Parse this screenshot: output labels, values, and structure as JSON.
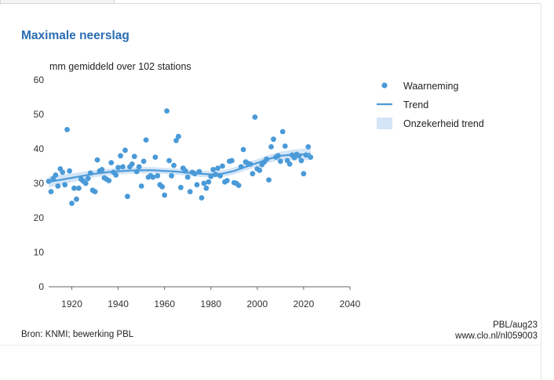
{
  "chart_data": {
    "type": "scatter",
    "title": "Maximale neerslag",
    "ylabel": "mm gemiddeld over 102 stations",
    "xlabel": "",
    "xlim": [
      1910,
      2040
    ],
    "ylim": [
      0,
      60
    ],
    "x_ticks": [
      "1920",
      "1940",
      "1960",
      "1980",
      "2000",
      "2020",
      "2040"
    ],
    "y_ticks": [
      "0",
      "10",
      "20",
      "30",
      "40",
      "50",
      "60"
    ],
    "grid": false,
    "legend_position": "right",
    "legend": {
      "observations": "Waarneming",
      "trend": "Trend",
      "band": "Onzekerheid trend"
    },
    "colors": {
      "points": "#4a9ad8",
      "trend": "#4a9ad8",
      "band": "#d3e5f7",
      "title": "#2a6db2"
    },
    "observations": [
      [
        1910,
        30.6
      ],
      [
        1911,
        27.6
      ],
      [
        1912,
        31.4
      ],
      [
        1913,
        32.4
      ],
      [
        1914,
        29.2
      ],
      [
        1915,
        34.2
      ],
      [
        1916,
        33.2
      ],
      [
        1917,
        29.6
      ],
      [
        1918,
        45.6
      ],
      [
        1919,
        33.6
      ],
      [
        1920,
        24.2
      ],
      [
        1921,
        28.6
      ],
      [
        1922,
        25.4
      ],
      [
        1923,
        28.6
      ],
      [
        1924,
        31.2
      ],
      [
        1925,
        30.6
      ],
      [
        1926,
        30.0
      ],
      [
        1927,
        31.4
      ],
      [
        1928,
        33.0
      ],
      [
        1929,
        28.0
      ],
      [
        1930,
        27.6
      ],
      [
        1931,
        36.8
      ],
      [
        1932,
        33.6
      ],
      [
        1933,
        34.0
      ],
      [
        1934,
        31.6
      ],
      [
        1935,
        31.2
      ],
      [
        1936,
        30.8
      ],
      [
        1937,
        36.0
      ],
      [
        1938,
        33.2
      ],
      [
        1939,
        32.4
      ],
      [
        1940,
        34.6
      ],
      [
        1941,
        38.0
      ],
      [
        1942,
        34.8
      ],
      [
        1943,
        39.6
      ],
      [
        1944,
        26.2
      ],
      [
        1945,
        34.8
      ],
      [
        1946,
        35.6
      ],
      [
        1947,
        37.8
      ],
      [
        1948,
        33.4
      ],
      [
        1949,
        34.8
      ],
      [
        1950,
        29.2
      ],
      [
        1951,
        36.4
      ],
      [
        1952,
        42.6
      ],
      [
        1953,
        31.8
      ],
      [
        1954,
        32.2
      ],
      [
        1955,
        31.8
      ],
      [
        1956,
        37.6
      ],
      [
        1957,
        32.2
      ],
      [
        1958,
        29.6
      ],
      [
        1959,
        29.0
      ],
      [
        1960,
        26.6
      ],
      [
        1961,
        51.0
      ],
      [
        1962,
        36.6
      ],
      [
        1963,
        32.2
      ],
      [
        1964,
        35.2
      ],
      [
        1965,
        42.4
      ],
      [
        1966,
        43.6
      ],
      [
        1967,
        28.8
      ],
      [
        1968,
        34.4
      ],
      [
        1969,
        33.6
      ],
      [
        1970,
        31.8
      ],
      [
        1971,
        27.6
      ],
      [
        1972,
        33.2
      ],
      [
        1973,
        32.8
      ],
      [
        1974,
        29.6
      ],
      [
        1975,
        33.4
      ],
      [
        1976,
        25.8
      ],
      [
        1977,
        30.0
      ],
      [
        1978,
        28.6
      ],
      [
        1979,
        30.4
      ],
      [
        1980,
        32.0
      ],
      [
        1981,
        34.0
      ],
      [
        1982,
        32.6
      ],
      [
        1983,
        34.4
      ],
      [
        1984,
        32.2
      ],
      [
        1985,
        35.0
      ],
      [
        1986,
        30.4
      ],
      [
        1987,
        30.8
      ],
      [
        1988,
        36.4
      ],
      [
        1989,
        36.6
      ],
      [
        1990,
        30.2
      ],
      [
        1991,
        30.0
      ],
      [
        1992,
        29.4
      ],
      [
        1993,
        34.8
      ],
      [
        1994,
        39.8
      ],
      [
        1995,
        36.2
      ],
      [
        1996,
        35.8
      ],
      [
        1997,
        35.6
      ],
      [
        1998,
        32.8
      ],
      [
        1999,
        49.2
      ],
      [
        2000,
        34.2
      ],
      [
        2001,
        33.8
      ],
      [
        2002,
        35.4
      ],
      [
        2003,
        36.2
      ],
      [
        2004,
        37.0
      ],
      [
        2005,
        31.0
      ],
      [
        2006,
        40.6
      ],
      [
        2007,
        42.8
      ],
      [
        2008,
        37.6
      ],
      [
        2009,
        38.0
      ],
      [
        2010,
        36.4
      ],
      [
        2011,
        45.0
      ],
      [
        2012,
        40.8
      ],
      [
        2013,
        36.6
      ],
      [
        2014,
        35.6
      ],
      [
        2015,
        38.2
      ],
      [
        2016,
        37.4
      ],
      [
        2017,
        38.4
      ],
      [
        2018,
        38.0
      ],
      [
        2019,
        36.6
      ],
      [
        2020,
        32.8
      ],
      [
        2021,
        38.2
      ],
      [
        2022,
        40.6
      ],
      [
        2023,
        37.6
      ]
    ],
    "trend": [
      [
        1910,
        30.4
      ],
      [
        1915,
        31.0
      ],
      [
        1920,
        31.6
      ],
      [
        1925,
        32.2
      ],
      [
        1930,
        32.8
      ],
      [
        1935,
        33.2
      ],
      [
        1940,
        33.5
      ],
      [
        1945,
        33.7
      ],
      [
        1950,
        33.8
      ],
      [
        1955,
        33.8
      ],
      [
        1960,
        33.6
      ],
      [
        1965,
        33.4
      ],
      [
        1970,
        33.1
      ],
      [
        1975,
        32.8
      ],
      [
        1980,
        32.6
      ],
      [
        1985,
        32.8
      ],
      [
        1990,
        33.6
      ],
      [
        1995,
        34.8
      ],
      [
        2000,
        35.9
      ],
      [
        2005,
        37.1
      ],
      [
        2010,
        38.0
      ],
      [
        2015,
        38.3
      ],
      [
        2020,
        38.4
      ],
      [
        2023,
        38.6
      ]
    ],
    "band_halfwidth": [
      [
        1910,
        1.6
      ],
      [
        1930,
        1.0
      ],
      [
        1950,
        0.9
      ],
      [
        1970,
        0.9
      ],
      [
        1990,
        1.0
      ],
      [
        2010,
        1.2
      ],
      [
        2023,
        1.8
      ]
    ]
  },
  "footer": {
    "source": "Bron: KNMI; bewerking PBL",
    "credit_code": "PBL/aug23",
    "credit_url": "www.clo.nl/nl059003"
  }
}
